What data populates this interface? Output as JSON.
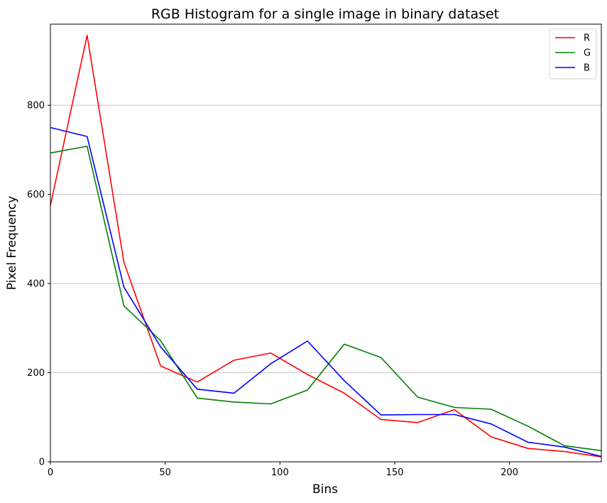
{
  "chart_data": {
    "type": "line",
    "title": "RGB Histogram for a single image in binary dataset",
    "xlabel": "Bins",
    "ylabel": "Pixel Frequency",
    "xlim": [
      0,
      240
    ],
    "ylim": [
      0,
      982
    ],
    "x_ticks": [
      0,
      50,
      100,
      150,
      200
    ],
    "y_ticks": [
      0,
      200,
      400,
      600,
      800
    ],
    "grid": "horizontal",
    "legend_placement": "top-right",
    "x": [
      0,
      16,
      32,
      48,
      64,
      80,
      96,
      112,
      128,
      144,
      160,
      176,
      192,
      208,
      224,
      240
    ],
    "series": [
      {
        "name": "R",
        "color": "#ff0000",
        "values": [
          575,
          957,
          448,
          215,
          179,
          228,
          244,
          196,
          154,
          95,
          88,
          117,
          56,
          30,
          23,
          11
        ]
      },
      {
        "name": "G",
        "color": "#008000",
        "values": [
          693,
          708,
          350,
          272,
          143,
          134,
          130,
          161,
          264,
          234,
          145,
          122,
          118,
          80,
          36,
          25
        ]
      },
      {
        "name": "B",
        "color": "#0000ff",
        "values": [
          750,
          730,
          392,
          258,
          163,
          154,
          220,
          271,
          182,
          105,
          106,
          106,
          85,
          44,
          33,
          12
        ]
      }
    ]
  }
}
